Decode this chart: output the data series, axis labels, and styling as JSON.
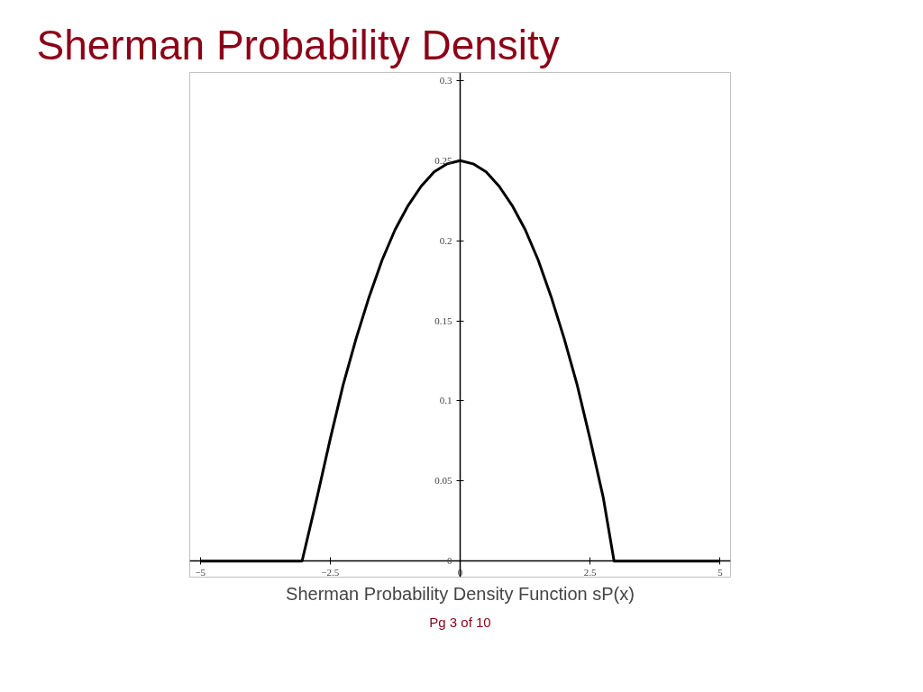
{
  "chart_data": {
    "type": "line",
    "title": "Sherman Probability Density",
    "xlabel": "Sherman Probability Density Function sP(x)",
    "annotations": [
      "Pg 3 of 10"
    ],
    "series": [
      {
        "color": "#000000",
        "x": [
          -5,
          -3.04,
          -2.75,
          -2.5,
          -2.25,
          -2,
          -1.75,
          -1.5,
          -1.25,
          -1,
          -0.75,
          -0.5,
          -0.25,
          0,
          0.25,
          0.5,
          0.75,
          1,
          1.25,
          1.5,
          1.75,
          2,
          2.25,
          2.5,
          2.75,
          2.96,
          5
        ],
        "values": [
          0,
          0,
          0.04,
          0.076,
          0.11,
          0.139,
          0.165,
          0.188,
          0.207,
          0.222,
          0.234,
          0.243,
          0.248,
          0.25,
          0.248,
          0.243,
          0.234,
          0.222,
          0.207,
          0.188,
          0.165,
          0.139,
          0.11,
          0.076,
          0.04,
          0,
          0
        ]
      }
    ],
    "xlim": [
      -5.2,
      5.2
    ],
    "ylim": [
      -0.01,
      0.305
    ],
    "xticks": [
      -5,
      -2.5,
      0,
      2.5,
      5
    ],
    "yticks": [
      0,
      0.05,
      0.1,
      0.15,
      0.2,
      0.25,
      0.3
    ],
    "marker": "none",
    "line_style": "solid"
  }
}
